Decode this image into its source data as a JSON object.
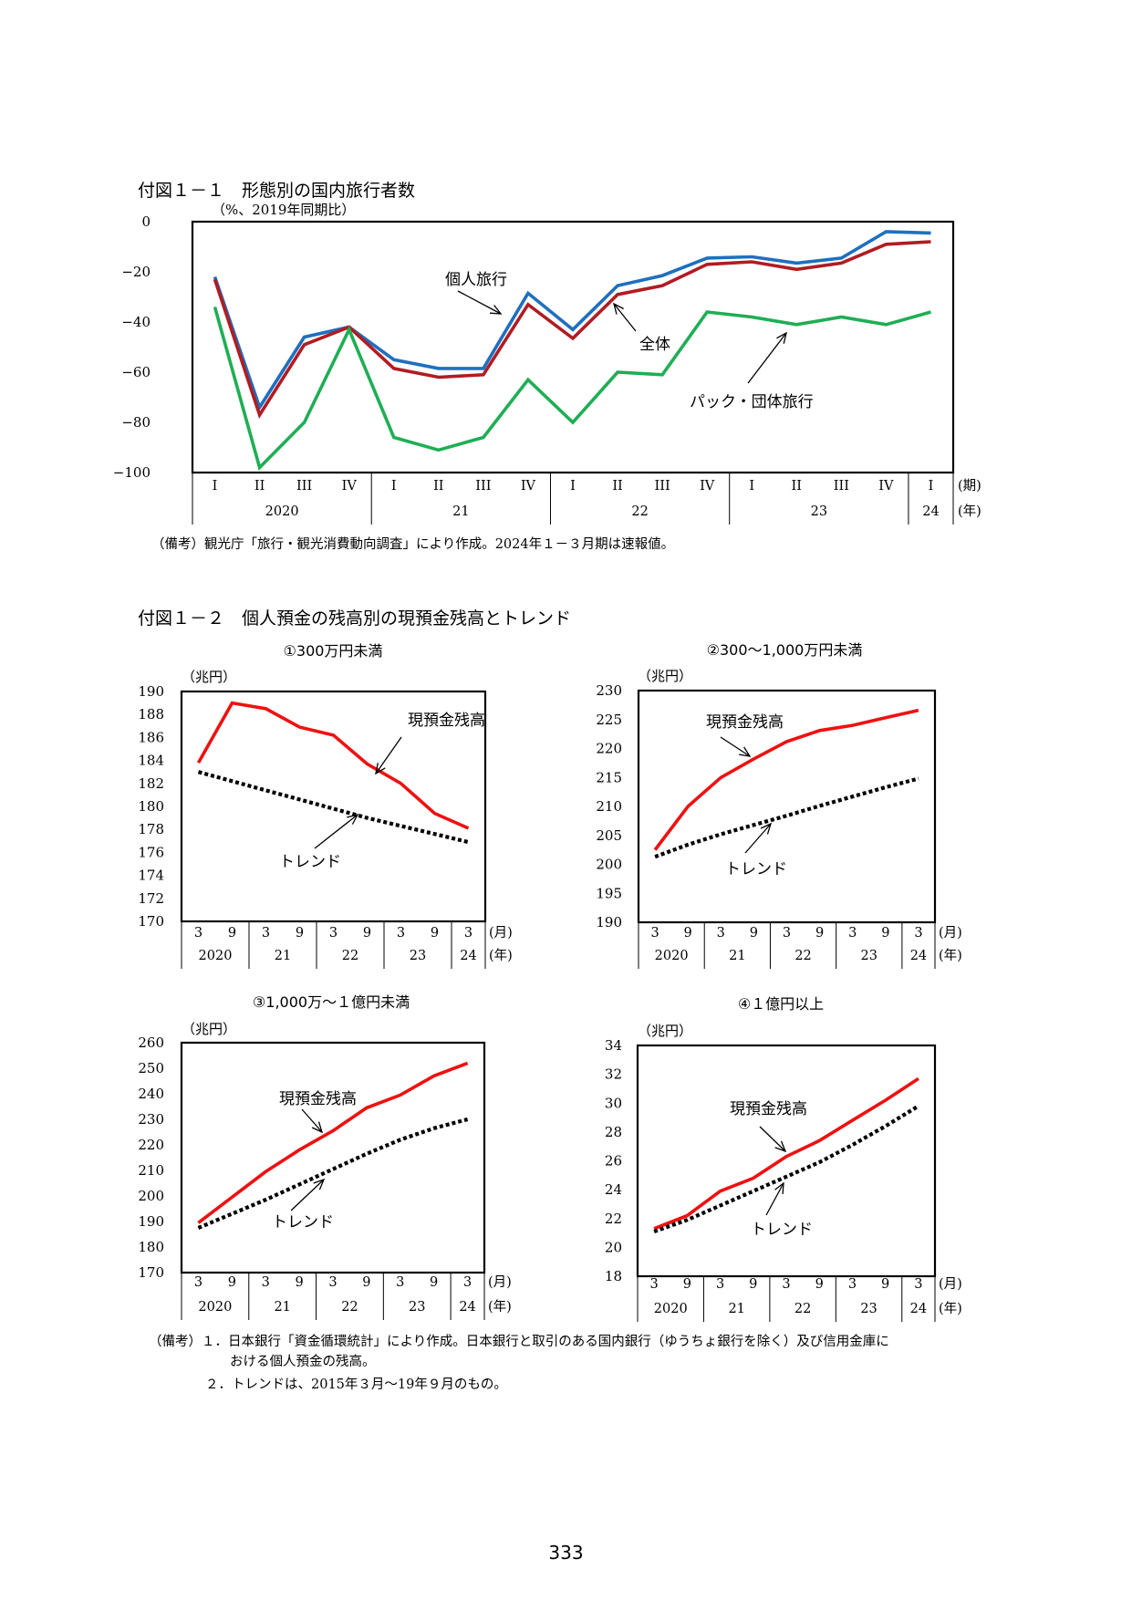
{
  "fig1": {
    "title": "付図１－１　形態別の国内旅行者数",
    "unit": "（%、2019年同期比）",
    "note": "（備考）観光庁「旅行・観光消費動向調査」により作成。2024年１－３月期は速報値。"
  },
  "fig2": {
    "title": "付図１－２　個人預金の残高別の現預金残高とトレンド",
    "notes": [
      "（備考）１．日本銀行「資金循環統計」により作成。日本銀行と取引のある国内銀行（ゆうちょ銀行を除く）及び信用金庫に",
      "おける個人預金の残高。",
      "２．トレンドは、2015年３月～19年９月のもの。"
    ]
  },
  "page_number": "333",
  "colors": {
    "individual": "#1f6fbf",
    "total": "#b01c22",
    "package": "#1fae55",
    "balance": "#ee1111",
    "trend": "#000000"
  },
  "chart_data": [
    {
      "id": "c1",
      "type": "line",
      "ylim": [
        -100,
        0
      ],
      "yticks": [
        0,
        -20,
        -40,
        -60,
        -80,
        -100
      ],
      "ytick_labels": [
        "0",
        "−20",
        "−40",
        "−60",
        "−80",
        "−100"
      ],
      "x": [
        "I",
        "II",
        "III",
        "IV",
        "I",
        "II",
        "III",
        "IV",
        "I",
        "II",
        "III",
        "IV",
        "I",
        "II",
        "III",
        "IV",
        "I"
      ],
      "x_unit": "(期)",
      "year_groups": [
        {
          "label": "2020",
          "count": 4
        },
        {
          "label": "21",
          "count": 4
        },
        {
          "label": "22",
          "count": 4
        },
        {
          "label": "23",
          "count": 4
        },
        {
          "label": "24",
          "count": 1
        }
      ],
      "year_unit": "(年)",
      "series": [
        {
          "name": "個人旅行",
          "color_key": "individual",
          "values": [
            -22,
            -74,
            -46,
            -42,
            -55,
            -58.5,
            -58.5,
            -28.5,
            -43,
            -25.5,
            -21.5,
            -14.5,
            -14,
            -16.5,
            -14.5,
            -4,
            -4.5
          ]
        },
        {
          "name": "全体",
          "color_key": "total",
          "values": [
            -23,
            -77,
            -49,
            -42,
            -58.5,
            -62,
            -61,
            -33,
            -46.5,
            -29,
            -25.5,
            -17,
            -16,
            -19,
            -16.5,
            -9,
            -8
          ]
        },
        {
          "name": "パック・団体旅行",
          "color_key": "package",
          "values": [
            -34,
            -98,
            -80,
            -43,
            -86,
            -91,
            -86,
            -63,
            -80,
            -60,
            -61,
            -36,
            -38,
            -41,
            -38,
            -41,
            -36
          ]
        }
      ]
    },
    {
      "id": "c2",
      "type": "line",
      "title": "①300万円未満",
      "ylabel": "（兆円）",
      "ylim": [
        170,
        190
      ],
      "yticks": [
        170,
        172,
        174,
        176,
        178,
        180,
        182,
        184,
        186,
        188,
        190
      ],
      "ytick_labels": [
        "170",
        "172",
        "174",
        "176",
        "178",
        "180",
        "182",
        "184",
        "186",
        "188",
        "190"
      ],
      "x": [
        "3",
        "9",
        "3",
        "9",
        "3",
        "9",
        "3",
        "9",
        "3"
      ],
      "x_unit": "(月)",
      "year_groups": [
        {
          "label": "2020",
          "count": 2
        },
        {
          "label": "21",
          "count": 2
        },
        {
          "label": "22",
          "count": 2
        },
        {
          "label": "23",
          "count": 2
        },
        {
          "label": "24",
          "count": 1
        }
      ],
      "year_unit": "(年)",
      "series": [
        {
          "name": "現預金残高",
          "color_key": "balance",
          "values": [
            183.8,
            189.0,
            188.5,
            186.9,
            186.2,
            183.7,
            182.0,
            179.4,
            178.1
          ]
        },
        {
          "name": "トレンド",
          "color_key": "trend",
          "values": [
            183.0,
            182.2,
            181.4,
            180.6,
            179.8,
            179.0,
            178.3,
            177.6,
            176.9
          ]
        }
      ]
    },
    {
      "id": "c3",
      "type": "line",
      "title": "②300～1,000万円未満",
      "ylabel": "（兆円）",
      "ylim": [
        190,
        230
      ],
      "yticks": [
        190,
        195,
        200,
        205,
        210,
        215,
        220,
        225,
        230
      ],
      "ytick_labels": [
        "190",
        "195",
        "200",
        "205",
        "210",
        "215",
        "220",
        "225",
        "230"
      ],
      "x": [
        "3",
        "9",
        "3",
        "9",
        "3",
        "9",
        "3",
        "9",
        "3"
      ],
      "x_unit": "(月)",
      "year_groups": [
        {
          "label": "2020",
          "count": 2
        },
        {
          "label": "21",
          "count": 2
        },
        {
          "label": "22",
          "count": 2
        },
        {
          "label": "23",
          "count": 2
        },
        {
          "label": "24",
          "count": 1
        }
      ],
      "year_unit": "(年)",
      "series": [
        {
          "name": "現預金残高",
          "color_key": "balance",
          "values": [
            202.5,
            210.0,
            215.0,
            218.2,
            221.2,
            223.1,
            224.0,
            225.3,
            226.6
          ]
        },
        {
          "name": "トレンド",
          "color_key": "trend",
          "values": [
            201.3,
            203.4,
            205.2,
            206.8,
            208.4,
            210.1,
            211.7,
            213.3,
            214.8
          ]
        }
      ]
    },
    {
      "id": "c4",
      "type": "line",
      "title": "③1,000万～１億円未満",
      "ylabel": "（兆円）",
      "ylim": [
        170,
        260
      ],
      "yticks": [
        170,
        180,
        190,
        200,
        210,
        220,
        230,
        240,
        250,
        260
      ],
      "ytick_labels": [
        "170",
        "180",
        "190",
        "200",
        "210",
        "220",
        "230",
        "240",
        "250",
        "260"
      ],
      "x": [
        "3",
        "9",
        "3",
        "9",
        "3",
        "9",
        "3",
        "9",
        "3"
      ],
      "x_unit": "(月)",
      "year_groups": [
        {
          "label": "2020",
          "count": 2
        },
        {
          "label": "21",
          "count": 2
        },
        {
          "label": "22",
          "count": 2
        },
        {
          "label": "23",
          "count": 2
        },
        {
          "label": "24",
          "count": 1
        }
      ],
      "year_unit": "(年)",
      "series": [
        {
          "name": "現預金残高",
          "color_key": "balance",
          "values": [
            189.5,
            199.5,
            209.5,
            218.0,
            225.5,
            234.5,
            239.5,
            247.0,
            252.0
          ]
        },
        {
          "name": "トレンド",
          "color_key": "trend",
          "values": [
            187.5,
            193.0,
            198.5,
            204.5,
            210.5,
            216.5,
            222.0,
            226.5,
            230.0
          ]
        }
      ]
    },
    {
      "id": "c5",
      "type": "line",
      "title": "④１億円以上",
      "ylabel": "（兆円）",
      "ylim": [
        18,
        34
      ],
      "yticks": [
        18,
        20,
        22,
        24,
        26,
        28,
        30,
        32,
        34
      ],
      "ytick_labels": [
        "18",
        "20",
        "22",
        "24",
        "26",
        "28",
        "30",
        "32",
        "34"
      ],
      "x": [
        "3",
        "9",
        "3",
        "9",
        "3",
        "9",
        "3",
        "9",
        "3"
      ],
      "x_unit": "(月)",
      "year_groups": [
        {
          "label": "2020",
          "count": 2
        },
        {
          "label": "21",
          "count": 2
        },
        {
          "label": "22",
          "count": 2
        },
        {
          "label": "23",
          "count": 2
        },
        {
          "label": "24",
          "count": 1
        }
      ],
      "year_unit": "(年)",
      "series": [
        {
          "name": "現預金残高",
          "color_key": "balance",
          "values": [
            21.3,
            22.2,
            23.9,
            24.8,
            26.3,
            27.4,
            28.8,
            30.2,
            31.7
          ]
        },
        {
          "name": "トレンド",
          "color_key": "trend",
          "values": [
            21.1,
            21.9,
            22.9,
            23.9,
            24.9,
            25.9,
            27.1,
            28.4,
            29.8
          ]
        }
      ]
    }
  ]
}
